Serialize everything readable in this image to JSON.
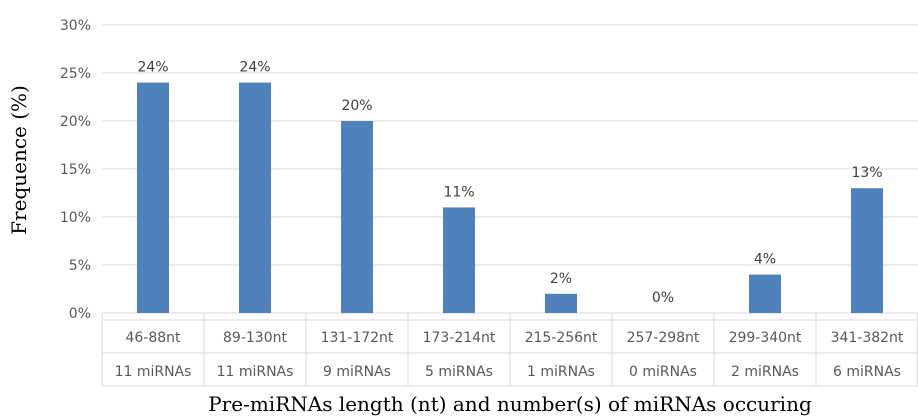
{
  "chart_data": {
    "type": "bar",
    "categories": [
      "46-88nt",
      "89-130nt",
      "131-172nt",
      "173-214nt",
      "215-256nt",
      "257-298nt",
      "299-340nt",
      "341-382nt"
    ],
    "sub_categories": [
      "11 miRNAs",
      "11 miRNAs",
      "9 miRNAs",
      "5 miRNAs",
      "1 miRNAs",
      "0 miRNAs",
      "2 miRNAs",
      "6 miRNAs"
    ],
    "values": [
      24,
      24,
      20,
      11,
      2,
      0,
      4,
      13
    ],
    "data_labels": [
      "24%",
      "24%",
      "20%",
      "11%",
      "2%",
      "0%",
      "4%",
      "13%"
    ],
    "ylabel": "Frequence (%)",
    "xlabel": "Pre-miRNAs length (nt) and number(s) of miRNAs occuring",
    "ylim": [
      0,
      30
    ],
    "yticks": [
      "0%",
      "5%",
      "10%",
      "15%",
      "20%",
      "25%",
      "30%"
    ],
    "ytick_values": [
      0,
      5,
      10,
      15,
      20,
      25,
      30
    ],
    "bar_color": "#4f81bd",
    "grid": true,
    "legend": false
  }
}
